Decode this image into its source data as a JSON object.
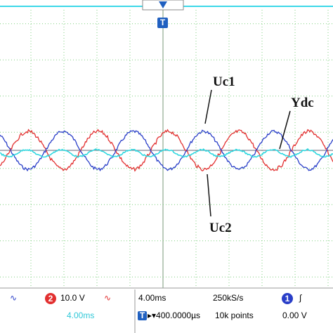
{
  "labels": {
    "uc1": "Uc1",
    "ydc": "Ydc",
    "uc2": "Uc2"
  },
  "markers": {
    "trigger": "T"
  },
  "status_bar": {
    "ch1_coupling": "∿",
    "ch2_number": "2",
    "ch2_scale": "10.0 V",
    "ch2_coupling": "∿",
    "math_scale": "4.00ms",
    "timebase": "4.00ms",
    "sample_rate": "250kS/s",
    "trigger_source": "1",
    "trigger_slope": "∫",
    "trigger_icon": "T",
    "trigger_delay": "▸▾400.0000µs",
    "record_length": "10k points",
    "trigger_level": "0.00 V"
  }
}
